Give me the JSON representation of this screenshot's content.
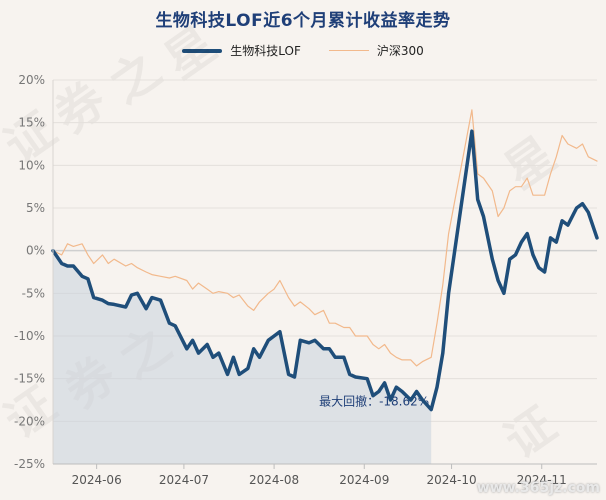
{
  "chart_data": {
    "type": "line",
    "title": "生物科技LOF近6个月累计收益率走势",
    "y_unit": "%",
    "ylim": [
      -25,
      20
    ],
    "yticks": [
      20,
      15,
      10,
      5,
      0,
      -5,
      -10,
      -15,
      -20,
      -25
    ],
    "ytick_labels": [
      "20%",
      "15%",
      "10%",
      "5%",
      "0%",
      "-5%",
      "-10%",
      "-15%",
      "-20%",
      "-25%"
    ],
    "x_range": [
      "2024-05-17",
      "2024-11-20"
    ],
    "xtick_dates": [
      "2024-06-01",
      "2024-07-01",
      "2024-08-01",
      "2024-09-01",
      "2024-10-01",
      "2024-11-01"
    ],
    "xtick_labels": [
      "2024-06",
      "2024-07",
      "2024-08",
      "2024-09",
      "2024-10",
      "2024-11"
    ],
    "grid": "horizontal",
    "legend_position": "top-center",
    "series": [
      {
        "name": "生物科技LOF",
        "color": "#1f4e7a",
        "points": [
          [
            "2024-05-17",
            0.0
          ],
          [
            "2024-05-20",
            -1.5
          ],
          [
            "2024-05-22",
            -1.8
          ],
          [
            "2024-05-24",
            -1.8
          ],
          [
            "2024-05-27",
            -3.0
          ],
          [
            "2024-05-29",
            -3.3
          ],
          [
            "2024-05-31",
            -5.5
          ],
          [
            "2024-06-03",
            -5.8
          ],
          [
            "2024-06-05",
            -6.2
          ],
          [
            "2024-06-07",
            -6.3
          ],
          [
            "2024-06-11",
            -6.6
          ],
          [
            "2024-06-13",
            -5.2
          ],
          [
            "2024-06-15",
            -5.0
          ],
          [
            "2024-06-18",
            -6.8
          ],
          [
            "2024-06-20",
            -5.5
          ],
          [
            "2024-06-23",
            -5.8
          ],
          [
            "2024-06-26",
            -8.5
          ],
          [
            "2024-06-28",
            -8.8
          ],
          [
            "2024-07-02",
            -11.5
          ],
          [
            "2024-07-04",
            -10.5
          ],
          [
            "2024-07-06",
            -12.0
          ],
          [
            "2024-07-09",
            -11.0
          ],
          [
            "2024-07-11",
            -12.5
          ],
          [
            "2024-07-13",
            -12.0
          ],
          [
            "2024-07-16",
            -14.5
          ],
          [
            "2024-07-18",
            -12.5
          ],
          [
            "2024-07-20",
            -14.5
          ],
          [
            "2024-07-23",
            -13.8
          ],
          [
            "2024-07-25",
            -11.5
          ],
          [
            "2024-07-27",
            -12.5
          ],
          [
            "2024-07-30",
            -10.5
          ],
          [
            "2024-08-01",
            -10.0
          ],
          [
            "2024-08-03",
            -9.5
          ],
          [
            "2024-08-06",
            -14.5
          ],
          [
            "2024-08-08",
            -14.8
          ],
          [
            "2024-08-10",
            -10.5
          ],
          [
            "2024-08-13",
            -10.8
          ],
          [
            "2024-08-15",
            -10.5
          ],
          [
            "2024-08-18",
            -11.5
          ],
          [
            "2024-08-20",
            -11.5
          ],
          [
            "2024-08-22",
            -12.5
          ],
          [
            "2024-08-25",
            -12.5
          ],
          [
            "2024-08-27",
            -14.5
          ],
          [
            "2024-08-29",
            -14.8
          ],
          [
            "2024-09-02",
            -15.0
          ],
          [
            "2024-09-04",
            -17.0
          ],
          [
            "2024-09-06",
            -16.5
          ],
          [
            "2024-09-08",
            -15.5
          ],
          [
            "2024-09-10",
            -17.5
          ],
          [
            "2024-09-12",
            -16.0
          ],
          [
            "2024-09-14",
            -16.5
          ],
          [
            "2024-09-17",
            -17.5
          ],
          [
            "2024-09-19",
            -16.5
          ],
          [
            "2024-09-21",
            -17.5
          ],
          [
            "2024-09-24",
            -18.62
          ],
          [
            "2024-09-26",
            -16.0
          ],
          [
            "2024-09-28",
            -12.0
          ],
          [
            "2024-09-30",
            -5.0
          ],
          [
            "2024-10-08",
            14.0
          ],
          [
            "2024-10-10",
            6.0
          ],
          [
            "2024-10-12",
            4.0
          ],
          [
            "2024-10-15",
            -1.0
          ],
          [
            "2024-10-17",
            -3.5
          ],
          [
            "2024-10-19",
            -5.0
          ],
          [
            "2024-10-21",
            -1.0
          ],
          [
            "2024-10-23",
            -0.5
          ],
          [
            "2024-10-25",
            1.0
          ],
          [
            "2024-10-27",
            2.0
          ],
          [
            "2024-10-29",
            -0.5
          ],
          [
            "2024-10-31",
            -2.0
          ],
          [
            "2024-11-02",
            -2.5
          ],
          [
            "2024-11-04",
            1.5
          ],
          [
            "2024-11-06",
            1.0
          ],
          [
            "2024-11-08",
            3.5
          ],
          [
            "2024-11-10",
            3.0
          ],
          [
            "2024-11-13",
            5.0
          ],
          [
            "2024-11-15",
            5.5
          ],
          [
            "2024-11-17",
            4.5
          ],
          [
            "2024-11-20",
            1.5
          ]
        ]
      },
      {
        "name": "沪深300",
        "color": "#f2b98c",
        "points": [
          [
            "2024-05-17",
            0.0
          ],
          [
            "2024-05-20",
            -0.5
          ],
          [
            "2024-05-22",
            0.8
          ],
          [
            "2024-05-24",
            0.5
          ],
          [
            "2024-05-27",
            0.8
          ],
          [
            "2024-05-29",
            -0.5
          ],
          [
            "2024-05-31",
            -1.5
          ],
          [
            "2024-06-03",
            -0.5
          ],
          [
            "2024-06-05",
            -1.5
          ],
          [
            "2024-06-07",
            -1.0
          ],
          [
            "2024-06-11",
            -1.8
          ],
          [
            "2024-06-13",
            -1.5
          ],
          [
            "2024-06-15",
            -2.0
          ],
          [
            "2024-06-18",
            -2.5
          ],
          [
            "2024-06-20",
            -2.8
          ],
          [
            "2024-06-23",
            -3.0
          ],
          [
            "2024-06-26",
            -3.2
          ],
          [
            "2024-06-28",
            -3.0
          ],
          [
            "2024-07-02",
            -3.5
          ],
          [
            "2024-07-04",
            -4.5
          ],
          [
            "2024-07-06",
            -3.8
          ],
          [
            "2024-07-09",
            -4.5
          ],
          [
            "2024-07-11",
            -5.0
          ],
          [
            "2024-07-13",
            -4.8
          ],
          [
            "2024-07-16",
            -5.0
          ],
          [
            "2024-07-18",
            -5.5
          ],
          [
            "2024-07-20",
            -5.2
          ],
          [
            "2024-07-23",
            -6.5
          ],
          [
            "2024-07-25",
            -7.0
          ],
          [
            "2024-07-27",
            -6.0
          ],
          [
            "2024-07-30",
            -5.0
          ],
          [
            "2024-08-01",
            -4.5
          ],
          [
            "2024-08-03",
            -3.5
          ],
          [
            "2024-08-06",
            -5.5
          ],
          [
            "2024-08-08",
            -6.5
          ],
          [
            "2024-08-10",
            -6.0
          ],
          [
            "2024-08-13",
            -6.8
          ],
          [
            "2024-08-15",
            -7.5
          ],
          [
            "2024-08-18",
            -7.0
          ],
          [
            "2024-08-20",
            -8.5
          ],
          [
            "2024-08-22",
            -8.5
          ],
          [
            "2024-08-25",
            -9.0
          ],
          [
            "2024-08-27",
            -9.0
          ],
          [
            "2024-08-29",
            -10.0
          ],
          [
            "2024-09-02",
            -10.0
          ],
          [
            "2024-09-04",
            -11.0
          ],
          [
            "2024-09-06",
            -11.5
          ],
          [
            "2024-09-08",
            -11.0
          ],
          [
            "2024-09-10",
            -12.0
          ],
          [
            "2024-09-12",
            -12.5
          ],
          [
            "2024-09-14",
            -12.8
          ],
          [
            "2024-09-17",
            -12.8
          ],
          [
            "2024-09-19",
            -13.5
          ],
          [
            "2024-09-21",
            -13.0
          ],
          [
            "2024-09-24",
            -12.5
          ],
          [
            "2024-09-26",
            -8.5
          ],
          [
            "2024-09-28",
            -4.0
          ],
          [
            "2024-09-30",
            2.0
          ],
          [
            "2024-10-08",
            16.5
          ],
          [
            "2024-10-10",
            9.0
          ],
          [
            "2024-10-12",
            8.5
          ],
          [
            "2024-10-15",
            7.0
          ],
          [
            "2024-10-17",
            4.0
          ],
          [
            "2024-10-19",
            5.0
          ],
          [
            "2024-10-21",
            7.0
          ],
          [
            "2024-10-23",
            7.5
          ],
          [
            "2024-10-25",
            7.5
          ],
          [
            "2024-10-27",
            8.5
          ],
          [
            "2024-10-29",
            6.5
          ],
          [
            "2024-10-31",
            6.5
          ],
          [
            "2024-11-02",
            6.5
          ],
          [
            "2024-11-04",
            9.0
          ],
          [
            "2024-11-06",
            11.0
          ],
          [
            "2024-11-08",
            13.5
          ],
          [
            "2024-11-10",
            12.5
          ],
          [
            "2024-11-13",
            12.0
          ],
          [
            "2024-11-15",
            12.5
          ],
          [
            "2024-11-17",
            11.0
          ],
          [
            "2024-11-20",
            10.5
          ]
        ]
      }
    ],
    "drawdown": {
      "label": "最大回撤：-18.62%",
      "value": -18.62,
      "from": "2024-05-17",
      "to": "2024-09-24",
      "fill": "#c8d2dc"
    }
  },
  "watermark": [
    "证",
    "券",
    "之",
    "星"
  ],
  "credit": "www.365jz.com"
}
